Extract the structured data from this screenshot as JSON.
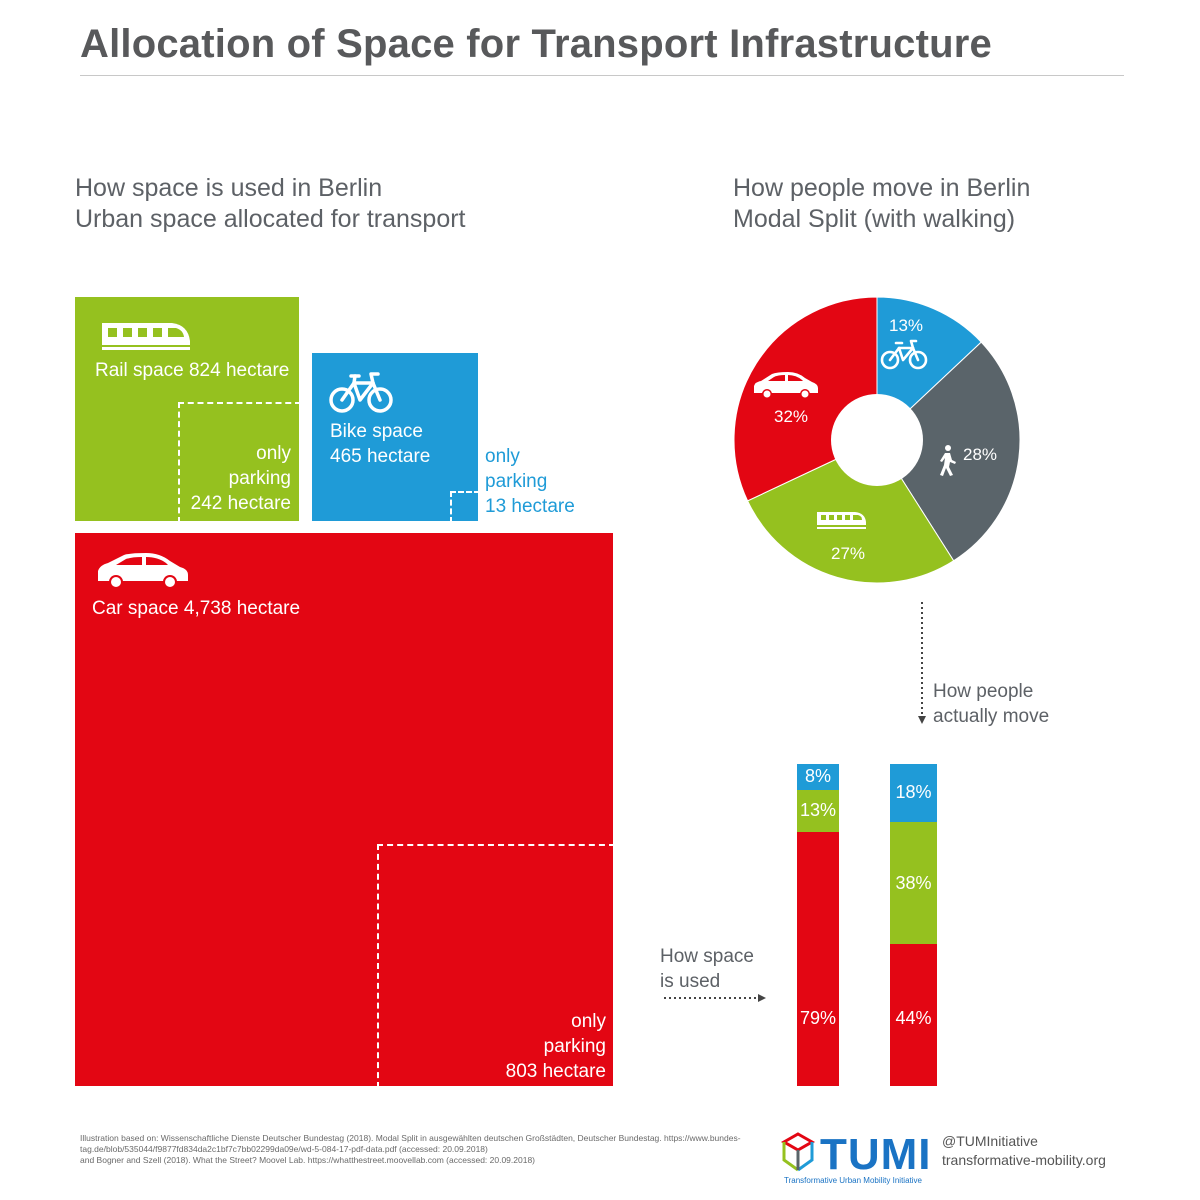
{
  "title": "Allocation of Space for Transport Infrastructure",
  "left_heading": {
    "line1": "How space is used in Berlin",
    "line2": "Urban space allocated for transport"
  },
  "right_heading": {
    "line1": "How people move in Berlin",
    "line2": "Modal Split (with walking)"
  },
  "colors": {
    "rail": "#95c11f",
    "bike": "#1f9bd7",
    "car": "#e30613",
    "walk": "#5a646a"
  },
  "icons": [
    "train-icon",
    "bicycle-icon",
    "car-icon",
    "pedestrian-icon"
  ],
  "chart_data": [
    {
      "type": "treemap",
      "title": "How space is used in Berlin",
      "subtitle": "Urban space allocated for transport",
      "unit": "hectare",
      "items": [
        {
          "name": "Rail space",
          "label": "Rail space 824 hectare",
          "value": 824,
          "parking_label": [
            "only",
            "parking",
            "242 hectare"
          ],
          "parking_value": 242
        },
        {
          "name": "Bike space",
          "label": [
            "Bike space",
            "465 hectare"
          ],
          "value": 465,
          "parking_label": [
            "only",
            "parking",
            "13 hectare"
          ],
          "parking_value": 13
        },
        {
          "name": "Car space",
          "label": "Car space 4,738 hectare",
          "value": 4738,
          "parking_label": [
            "only",
            "parking",
            "803 hectare"
          ],
          "parking_value": 803
        }
      ]
    },
    {
      "type": "pie",
      "title": "How people move in Berlin",
      "subtitle": "Modal Split (with walking)",
      "slices": [
        {
          "mode": "bike",
          "value": 13,
          "label": "13%"
        },
        {
          "mode": "walk",
          "value": 28,
          "label": "28%"
        },
        {
          "mode": "rail",
          "value": 27,
          "label": "27%"
        },
        {
          "mode": "car",
          "value": 32,
          "label": "32%"
        }
      ]
    },
    {
      "type": "bar",
      "stacked": true,
      "categories": [
        "How space is used",
        "How people actually move"
      ],
      "series": [
        {
          "mode": "car",
          "values": [
            79,
            44
          ],
          "labels": [
            "79%",
            "44%"
          ]
        },
        {
          "mode": "rail",
          "values": [
            13,
            38
          ],
          "labels": [
            "13%",
            "38%"
          ]
        },
        {
          "mode": "bike",
          "values": [
            8,
            18
          ],
          "labels": [
            "8%",
            "18%"
          ]
        }
      ]
    }
  ],
  "notes": {
    "space_used": [
      "How space",
      "is used"
    ],
    "actually_move": [
      "How people",
      "actually move"
    ]
  },
  "footnote": [
    "Illustration based on: Wissenschaftliche Dienste Deutscher Bundestag (2018). Modal Split in ausgewählten deutschen Großstädten, Deutscher Bundestag. https://www.bundes-",
    "tag.de/blob/535044/f9877fd834da2c1bf7c7bb02299da09e/wd-5-084-17-pdf-data.pdf (accessed: 20.09.2018)",
    "and Bogner and Szell (2018). What the Street? Moovel Lab. https://whatthestreet.moovellab.com (accessed: 20.09.2018)"
  ],
  "brand": {
    "name": "TUMI",
    "tagline": "Transformative Urban Mobility Initiative",
    "handle": "@TUMInitiative",
    "site": "transformative-mobility.org"
  }
}
